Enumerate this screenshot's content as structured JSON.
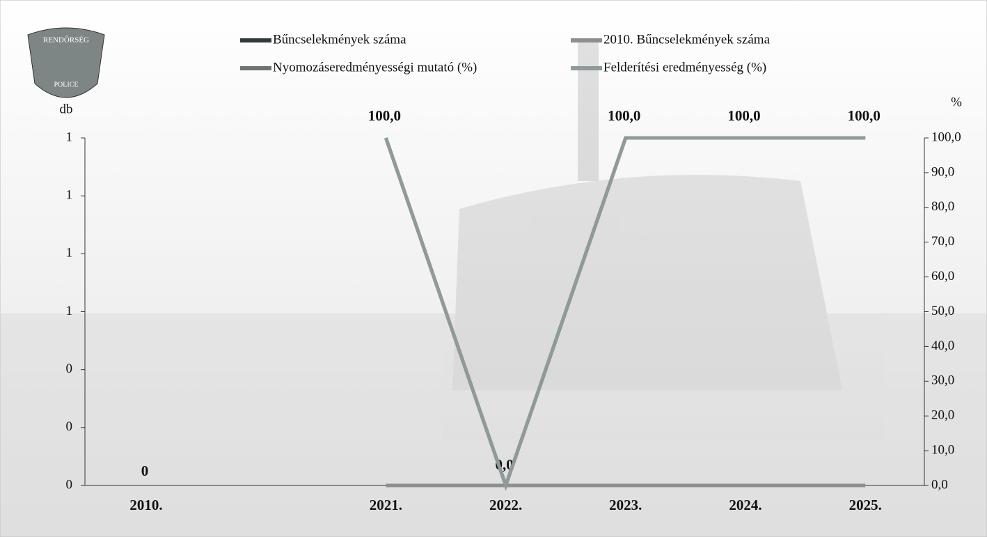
{
  "logo": {
    "top": "RENDŐRSÉG",
    "bottom": "POLICE"
  },
  "chart_data": {
    "type": "bar-line",
    "y_label": "db",
    "y2_label": "%",
    "categories": [
      "2010.",
      null,
      "2021.",
      "2022.",
      "2023.",
      "2024.",
      "2025."
    ],
    "ylim": [
      0,
      1.2
    ],
    "yticks": [
      {
        "value": 0,
        "label": "0"
      },
      {
        "value": 0.2,
        "label": "0"
      },
      {
        "value": 0.4,
        "label": "0"
      },
      {
        "value": 0.6,
        "label": "1"
      },
      {
        "value": 0.8,
        "label": "1"
      },
      {
        "value": 1.0,
        "label": "1"
      },
      {
        "value": 1.2,
        "label": "1"
      }
    ],
    "y2lim": [
      0,
      100
    ],
    "y2ticks": [
      {
        "value": 0,
        "label": "0,0"
      },
      {
        "value": 10,
        "label": "10,0"
      },
      {
        "value": 20,
        "label": "20,0"
      },
      {
        "value": 30,
        "label": "30,0"
      },
      {
        "value": 40,
        "label": "40,0"
      },
      {
        "value": 50,
        "label": "50,0"
      },
      {
        "value": 60,
        "label": "60,0"
      },
      {
        "value": 70,
        "label": "70,0"
      },
      {
        "value": 80,
        "label": "80,0"
      },
      {
        "value": 90,
        "label": "90,0"
      },
      {
        "value": 100,
        "label": "100,0"
      }
    ],
    "series": [
      {
        "name": "Bűncselekmények száma",
        "kind": "bar",
        "color": "#2f3b3b",
        "values": [
          0,
          null,
          0,
          0,
          0,
          0,
          0
        ]
      },
      {
        "name": "2010. Bűncselekmények száma",
        "kind": "line",
        "color": "#8c8f8f",
        "values": [
          0,
          null,
          0,
          0,
          0,
          0,
          0
        ]
      },
      {
        "name": "Nyomozáseredményességi mutató (%)",
        "kind": "line",
        "axis": "y2",
        "color": "#6c7373",
        "values": [
          null,
          null,
          100,
          0,
          100,
          100,
          100
        ],
        "value_labels": [
          null,
          null,
          "100,0",
          "0,0",
          "100,0",
          "100,0",
          "100,0"
        ]
      },
      {
        "name": "Felderítési eredményesség (%)",
        "kind": "line",
        "axis": "y2",
        "color": "#8f9a9a",
        "values": [
          null,
          null,
          100,
          0,
          100,
          100,
          100
        ]
      }
    ]
  }
}
